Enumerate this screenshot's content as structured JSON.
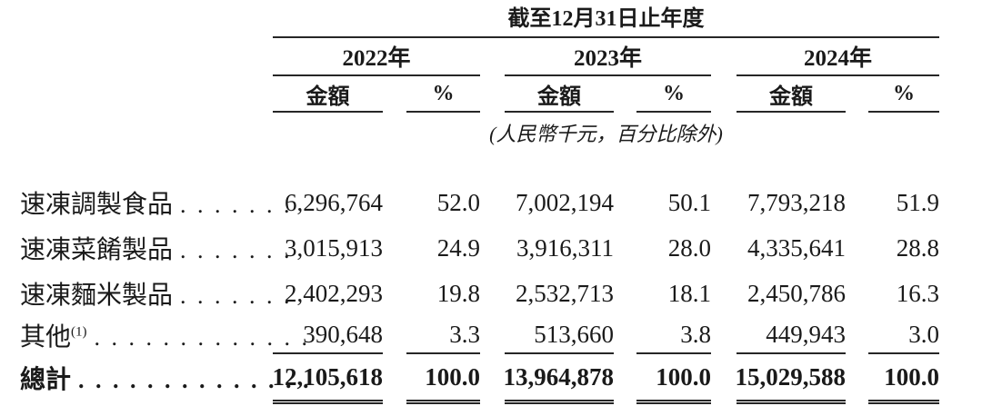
{
  "table": {
    "title": "截至12月31日止年度",
    "unit_note": "(人民幣千元，百分比除外)",
    "years": [
      "2022年",
      "2023年",
      "2024年"
    ],
    "subheaders": {
      "amount": "金額",
      "percent": "%"
    },
    "rows": [
      {
        "label": "速凍調製食品",
        "sup": "",
        "leader": ". . . . . . .",
        "v": [
          "6,296,764",
          "52.0",
          "7,002,194",
          "50.1",
          "7,793,218",
          "51.9"
        ]
      },
      {
        "label": "速凍菜餚製品",
        "sup": "",
        "leader": ". . . . . . .",
        "v": [
          "3,015,913",
          "24.9",
          "3,916,311",
          "28.0",
          "4,335,641",
          "28.8"
        ]
      },
      {
        "label": "速凍麵米製品",
        "sup": "",
        "leader": ". . . . . . .",
        "v": [
          "2,402,293",
          "19.8",
          "2,532,713",
          "18.1",
          "2,450,786",
          "16.3"
        ]
      },
      {
        "label": "其他",
        "sup": "(1)",
        "leader": ". . . . . . . . . . . . .",
        "v": [
          "390,648",
          "3.3",
          "513,660",
          "3.8",
          "449,943",
          "3.0"
        ]
      }
    ],
    "total": {
      "label": "總計",
      "leader": ". . . . . . . . . . . . . .",
      "v": [
        "12,105,618",
        "100.0",
        "13,964,878",
        "100.0",
        "15,029,588",
        "100.0"
      ]
    }
  },
  "colors": {
    "text": "#1a1a1a",
    "rule": "#262626",
    "background": "#ffffff"
  }
}
